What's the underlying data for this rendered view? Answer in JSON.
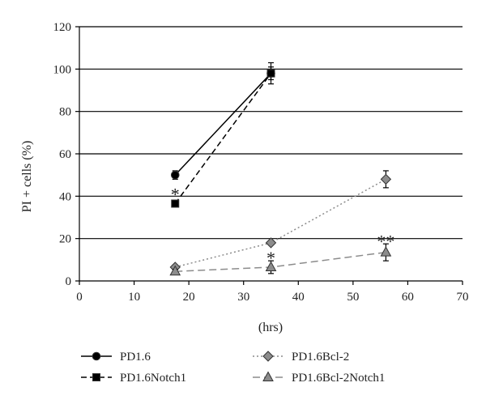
{
  "chart_data": {
    "type": "line",
    "xlabel": "(hrs)",
    "ylabel": "PI + cells (%)",
    "xlim": [
      0,
      70
    ],
    "ylim": [
      0,
      120
    ],
    "xticks": [
      0,
      10,
      20,
      30,
      40,
      50,
      60,
      70
    ],
    "yticks": [
      0,
      20,
      40,
      60,
      80,
      100,
      120
    ],
    "grid": "horizontal",
    "legend_position": "bottom",
    "series": [
      {
        "name": "PD1.6",
        "x": [
          17.5,
          35
        ],
        "y": [
          50,
          98
        ],
        "err": [
          2,
          3
        ],
        "marker": "circle",
        "dash": "solid",
        "color": "#000000",
        "fill": "#000000"
      },
      {
        "name": "PD1.6Notch1",
        "x": [
          17.5,
          35
        ],
        "y": [
          36.5,
          98
        ],
        "err": [
          1.5,
          5
        ],
        "marker": "square",
        "dash": "dashed",
        "color": "#000000",
        "fill": "#000000"
      },
      {
        "name": "PD1.6Bcl-2",
        "x": [
          17.5,
          35,
          56
        ],
        "y": [
          6.5,
          18,
          48
        ],
        "err": [
          1,
          1,
          4
        ],
        "marker": "diamond",
        "dash": "dotted",
        "color": "#8c8c8c",
        "fill": "#8c8c8c"
      },
      {
        "name": "PD1.6Bcl-2Notch1",
        "x": [
          17.5,
          35,
          56
        ],
        "y": [
          4.5,
          6.5,
          13.5
        ],
        "err": [
          1,
          3,
          4
        ],
        "marker": "triangle",
        "dash": "longdash",
        "color": "#8c8c8c",
        "fill": "#8c8c8c"
      }
    ],
    "annotations": [
      {
        "text": "*",
        "x": 17.5,
        "y": 41
      },
      {
        "text": "*",
        "x": 35,
        "y": 11
      },
      {
        "text": "**",
        "x": 56,
        "y": 19
      }
    ]
  }
}
